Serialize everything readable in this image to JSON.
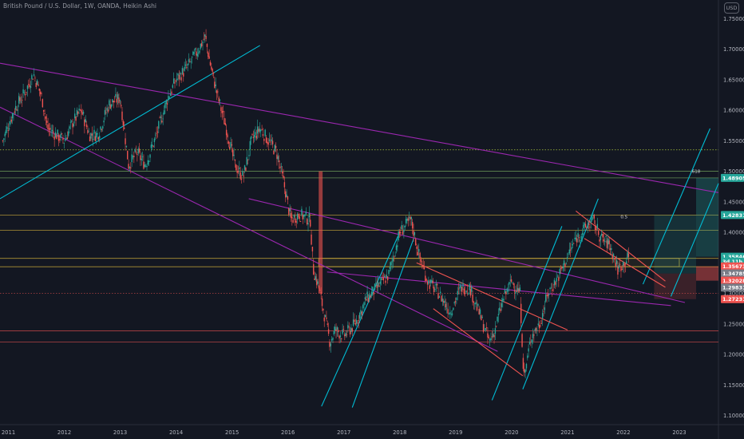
{
  "header": {
    "title": "British Pound / U.S. Dollar, 1W, OANDA, Heikin Ashi",
    "currency": "USD"
  },
  "chart_data": {
    "type": "candlestick",
    "title": "British Pound / U.S. Dollar, 1W, OANDA, Heikin Ashi",
    "symbol": "GBPUSD",
    "timeframe": "1W",
    "currency": "USD",
    "x_range": [
      2010.85,
      2023.7
    ],
    "y_range": [
      1.085,
      1.77
    ],
    "y_scale": "linear",
    "grid": false,
    "x_ticks": [
      "2011",
      "2012",
      "2013",
      "2014",
      "2015",
      "2016",
      "2017",
      "2018",
      "2019",
      "2020",
      "2021",
      "2022",
      "2023"
    ],
    "y_ticks": [
      "1.75000",
      "1.70000",
      "1.65000",
      "1.60000",
      "1.55000",
      "1.50000",
      "1.45000",
      "1.40000",
      "1.35000",
      "1.30000",
      "1.25000",
      "1.20000",
      "1.15000",
      "1.10000"
    ],
    "colors": {
      "background": "#131722",
      "bull": "#26a69a",
      "bear": "#ef5350",
      "trend_cyan": "#00bcd4",
      "trend_magenta": "#9c27b0",
      "level_yellow": "#c8a838",
      "level_green": "#6f9f5a",
      "level_red": "#d04a4a"
    },
    "price_path": [
      [
        2010.9,
        1.55
      ],
      [
        2011.1,
        1.6
      ],
      [
        2011.3,
        1.63
      ],
      [
        2011.45,
        1.66
      ],
      [
        2011.6,
        1.62
      ],
      [
        2011.7,
        1.57
      ],
      [
        2011.85,
        1.56
      ],
      [
        2012.0,
        1.55
      ],
      [
        2012.15,
        1.58
      ],
      [
        2012.3,
        1.6
      ],
      [
        2012.45,
        1.56
      ],
      [
        2012.6,
        1.56
      ],
      [
        2012.8,
        1.61
      ],
      [
        2013.0,
        1.62
      ],
      [
        2013.15,
        1.51
      ],
      [
        2013.3,
        1.53
      ],
      [
        2013.45,
        1.51
      ],
      [
        2013.65,
        1.56
      ],
      [
        2013.85,
        1.62
      ],
      [
        2014.0,
        1.65
      ],
      [
        2014.2,
        1.67
      ],
      [
        2014.4,
        1.7
      ],
      [
        2014.52,
        1.72
      ],
      [
        2014.6,
        1.68
      ],
      [
        2014.75,
        1.62
      ],
      [
        2014.9,
        1.57
      ],
      [
        2015.05,
        1.51
      ],
      [
        2015.2,
        1.49
      ],
      [
        2015.35,
        1.55
      ],
      [
        2015.5,
        1.57
      ],
      [
        2015.65,
        1.55
      ],
      [
        2015.8,
        1.53
      ],
      [
        2015.95,
        1.47
      ],
      [
        2016.05,
        1.42
      ],
      [
        2016.2,
        1.43
      ],
      [
        2016.4,
        1.42
      ],
      [
        2016.45,
        1.34
      ],
      [
        2016.55,
        1.31
      ],
      [
        2016.75,
        1.22
      ],
      [
        2016.85,
        1.24
      ],
      [
        2017.0,
        1.23
      ],
      [
        2017.2,
        1.25
      ],
      [
        2017.4,
        1.29
      ],
      [
        2017.6,
        1.31
      ],
      [
        2017.8,
        1.33
      ],
      [
        2018.0,
        1.4
      ],
      [
        2018.2,
        1.42
      ],
      [
        2018.35,
        1.36
      ],
      [
        2018.5,
        1.32
      ],
      [
        2018.7,
        1.3
      ],
      [
        2018.9,
        1.27
      ],
      [
        2019.1,
        1.31
      ],
      [
        2019.25,
        1.31
      ],
      [
        2019.45,
        1.26
      ],
      [
        2019.6,
        1.22
      ],
      [
        2019.7,
        1.24
      ],
      [
        2019.85,
        1.29
      ],
      [
        2020.0,
        1.32
      ],
      [
        2020.15,
        1.3
      ],
      [
        2020.22,
        1.16
      ],
      [
        2020.35,
        1.23
      ],
      [
        2020.5,
        1.25
      ],
      [
        2020.65,
        1.3
      ],
      [
        2020.85,
        1.33
      ],
      [
        2021.0,
        1.36
      ],
      [
        2021.15,
        1.39
      ],
      [
        2021.35,
        1.41
      ],
      [
        2021.45,
        1.42
      ],
      [
        2021.6,
        1.39
      ],
      [
        2021.75,
        1.38
      ],
      [
        2021.9,
        1.34
      ],
      [
        2022.0,
        1.35
      ],
      [
        2022.1,
        1.36
      ]
    ],
    "horizontal_levels": [
      {
        "price": 1.535,
        "color": "#c8e640",
        "style": "dotted"
      },
      {
        "price": 1.5,
        "color": "#6f9f5a",
        "style": "solid"
      },
      {
        "price": 1.4891,
        "color": "#6f9f5a",
        "style": "solid"
      },
      {
        "price": 1.4283,
        "color": "#c8a838",
        "style": "solid"
      },
      {
        "price": 1.4035,
        "color": "#c8a838",
        "style": "solid"
      },
      {
        "price": 1.3573,
        "color": "#c8a838",
        "style": "solid"
      },
      {
        "price": 1.3436,
        "color": "#c8a838",
        "style": "solid"
      },
      {
        "price": 1.3,
        "color": "#d04a4a",
        "style": "dotted"
      },
      {
        "price": 1.2385,
        "color": "#d04a4a",
        "style": "solid"
      },
      {
        "price": 1.2205,
        "color": "#d04a4a",
        "style": "solid"
      }
    ],
    "trend_lines": [
      {
        "x1": 2010.85,
        "y1": 1.677,
        "x2": 2023.7,
        "y2": 1.465,
        "color": "#9c27b0"
      },
      {
        "x1": 2010.85,
        "y1": 1.605,
        "x2": 2019.75,
        "y2": 1.205,
        "color": "#9c27b0"
      },
      {
        "x1": 2015.3,
        "y1": 1.455,
        "x2": 2023.1,
        "y2": 1.285,
        "color": "#9c27b0"
      },
      {
        "x1": 2016.7,
        "y1": 1.335,
        "x2": 2022.85,
        "y2": 1.28,
        "color": "#9c27b0"
      },
      {
        "x1": 2010.85,
        "y1": 1.455,
        "x2": 2015.5,
        "y2": 1.706,
        "color": "#00bcd4"
      },
      {
        "x1": 2016.6,
        "y1": 1.115,
        "x2": 2018.0,
        "y2": 1.4,
        "color": "#00bcd4"
      },
      {
        "x1": 2017.15,
        "y1": 1.113,
        "x2": 2018.25,
        "y2": 1.39,
        "color": "#00bcd4"
      },
      {
        "x1": 2019.65,
        "y1": 1.125,
        "x2": 2020.9,
        "y2": 1.41,
        "color": "#00bcd4"
      },
      {
        "x1": 2020.2,
        "y1": 1.143,
        "x2": 2021.55,
        "y2": 1.455,
        "color": "#00bcd4"
      },
      {
        "x1": 2022.35,
        "y1": 1.315,
        "x2": 2023.55,
        "y2": 1.57,
        "color": "#00bcd4"
      },
      {
        "x1": 2022.85,
        "y1": 1.295,
        "x2": 2023.7,
        "y2": 1.48,
        "color": "#00bcd4"
      },
      {
        "x1": 2018.3,
        "y1": 1.35,
        "x2": 2021.0,
        "y2": 1.24,
        "color": "#ef5350"
      },
      {
        "x1": 2018.6,
        "y1": 1.275,
        "x2": 2020.2,
        "y2": 1.165,
        "color": "#ef5350"
      },
      {
        "x1": 2021.15,
        "y1": 1.435,
        "x2": 2022.75,
        "y2": 1.32,
        "color": "#ef5350"
      },
      {
        "x1": 2021.3,
        "y1": 1.39,
        "x2": 2022.75,
        "y2": 1.31,
        "color": "#ef5350"
      }
    ],
    "fib_labels": [
      {
        "text": "0.5",
        "x": 2021.95,
        "price": 1.42
      },
      {
        "text": ".618",
        "x": 2023.2,
        "price": 1.495
      }
    ],
    "price_tags": [
      {
        "text": "1.48905",
        "price": 1.4891,
        "color": "#26a69a"
      },
      {
        "text": "1.42831",
        "price": 1.4283,
        "color": "#26a69a"
      },
      {
        "text": "1.35846",
        "price": 1.36,
        "color": "#26a69a"
      },
      {
        "text": "3d 11h",
        "price": 1.352,
        "color": "#26a69a"
      },
      {
        "text": "1.35673",
        "price": 1.3442,
        "color": "#ef5350"
      },
      {
        "text": "1.34785",
        "price": 1.3325,
        "color": "#787b86"
      },
      {
        "text": "1.32028",
        "price": 1.3208,
        "color": "#ef5350"
      },
      {
        "text": "1.29831",
        "price": 1.3095,
        "color": "#787b86"
      },
      {
        "text": "1.27231",
        "price": 1.2905,
        "color": "#ef5350"
      }
    ]
  }
}
